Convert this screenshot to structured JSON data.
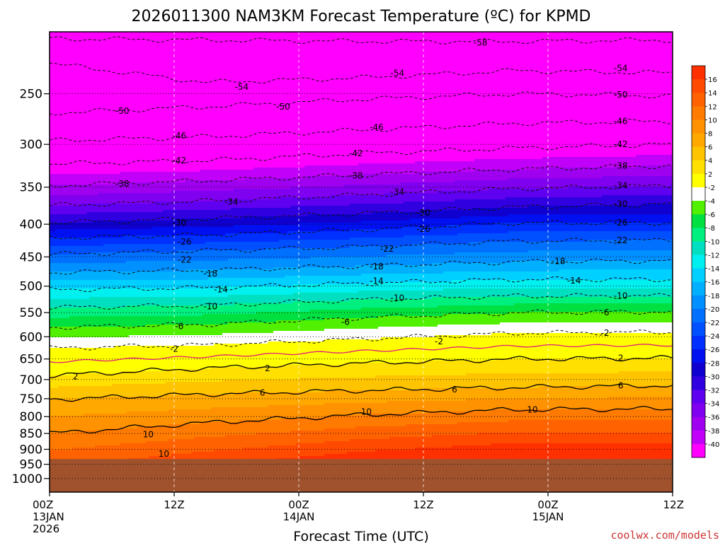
{
  "chart_data": {
    "type": "heatmap",
    "title": "2026011300 NAM3KM Forecast Temperature (ºC) for KPMD",
    "xlabel": "Forecast Time (UTC)",
    "ylabel": "",
    "credit": "coolwx.com/models",
    "x_range_hours": [
      0,
      60
    ],
    "x_ticks": [
      {
        "hour": 0,
        "lines": [
          "00Z",
          "13JAN",
          "2026"
        ]
      },
      {
        "hour": 12,
        "lines": [
          "12Z"
        ]
      },
      {
        "hour": 24,
        "lines": [
          "00Z",
          "14JAN"
        ]
      },
      {
        "hour": 36,
        "lines": [
          "12Z"
        ]
      },
      {
        "hour": 48,
        "lines": [
          "00Z",
          "15JAN"
        ]
      },
      {
        "hour": 60,
        "lines": [
          "12Z"
        ]
      }
    ],
    "y_scale": "log-pressure",
    "y_range_hPa": [
      200,
      1050
    ],
    "y_ticks": [
      250,
      300,
      350,
      400,
      450,
      500,
      550,
      600,
      650,
      700,
      750,
      800,
      850,
      900,
      950,
      1000
    ],
    "surface_pressure_hPa": 932,
    "colorbar": {
      "labels": [
        "16",
        "14",
        "12",
        "10",
        "8",
        "6",
        "4",
        "2",
        "-2",
        "-4",
        "-6",
        "-8",
        "-10",
        "-12",
        "-14",
        "-16",
        "-18",
        "-20",
        "-22",
        "-24",
        "-26",
        "-28",
        "-30",
        "-32",
        "-34",
        "-36",
        "-38",
        "-40"
      ],
      "colors": [
        "#ff3000",
        "#ff4a00",
        "#ff6200",
        "#ff7a00",
        "#ff9200",
        "#ffa800",
        "#ffc400",
        "#ffe000",
        "#ffff00",
        "#ffffff",
        "#50f000",
        "#00e040",
        "#00f080",
        "#00e0c0",
        "#00f0f0",
        "#00d0ff",
        "#00b0ff",
        "#0090ff",
        "#0070ff",
        "#0050ff",
        "#0030ff",
        "#0010f0",
        "#1000d0",
        "#3000e0",
        "#6000f0",
        "#8000f0",
        "#a000f0",
        "#c000f8",
        "#ff00ff"
      ]
    },
    "contours": [
      {
        "temp": -58,
        "label": "-58",
        "pressure_hPa": [
          205,
          206,
          207,
          207,
          206
        ]
      },
      {
        "temp": -54,
        "label": "-54",
        "pressure_hPa": [
          224,
          240,
          236,
          230,
          232
        ]
      },
      {
        "temp": -50,
        "label": "-50",
        "pressure_hPa": [
          268,
          262,
          255,
          250,
          252
        ]
      },
      {
        "temp": -46,
        "label": "-46",
        "pressure_hPa": [
          296,
          292,
          285,
          278,
          276
        ]
      },
      {
        "temp": -42,
        "label": "-42",
        "pressure_hPa": [
          322,
          318,
          310,
          304,
          300
        ]
      },
      {
        "temp": -38,
        "label": "-38",
        "pressure_hPa": [
          348,
          342,
          335,
          328,
          324
        ]
      },
      {
        "temp": -34,
        "label": "-34",
        "pressure_hPa": [
          374,
          368,
          360,
          352,
          348
        ]
      },
      {
        "temp": -30,
        "label": "-30",
        "pressure_hPa": [
          398,
          392,
          385,
          376,
          372
        ]
      },
      {
        "temp": -26,
        "label": "-26",
        "pressure_hPa": [
          420,
          416,
          408,
          398,
          398
        ]
      },
      {
        "temp": -22,
        "label": "-22",
        "pressure_hPa": [
          446,
          440,
          434,
          425,
          424
        ]
      },
      {
        "temp": -18,
        "label": "-18",
        "pressure_hPa": [
          476,
          472,
          465,
          458,
          456
        ]
      },
      {
        "temp": -14,
        "label": "-14",
        "pressure_hPa": [
          506,
          503,
          495,
          488,
          488
        ]
      },
      {
        "temp": -10,
        "label": "-10",
        "pressure_hPa": [
          540,
          536,
          525,
          518,
          518
        ]
      },
      {
        "temp": -6,
        "label": "-6",
        "pressure_hPa": [
          580,
          574,
          560,
          550,
          548
        ]
      },
      {
        "temp": -2,
        "label": "-2",
        "pressure_hPa": [
          625,
          618,
          605,
          592,
          590
        ]
      },
      {
        "temp": 2,
        "label": "2",
        "pressure_hPa": [
          690,
          672,
          660,
          650,
          648
        ]
      },
      {
        "temp": 6,
        "label": "6",
        "pressure_hPa": [
          752,
          738,
          728,
          720,
          715
        ]
      },
      {
        "temp": 10,
        "label": "10",
        "pressure_hPa": [
          850,
          818,
          795,
          780,
          778
        ]
      }
    ],
    "label_positions": [
      {
        "label": "-58",
        "hour": 41.5,
        "hPa": 208
      },
      {
        "label": "-54",
        "hour": 18.5,
        "hPa": 244
      },
      {
        "label": "-54",
        "hour": 33.5,
        "hPa": 232
      },
      {
        "label": "-54",
        "hour": 55,
        "hPa": 228
      },
      {
        "label": "-50",
        "hour": 7,
        "hPa": 266
      },
      {
        "label": "-50",
        "hour": 22.5,
        "hPa": 262
      },
      {
        "label": "-50",
        "hour": 55,
        "hPa": 251
      },
      {
        "label": "-46",
        "hour": 12.5,
        "hPa": 291
      },
      {
        "label": "-46",
        "hour": 31.5,
        "hPa": 282
      },
      {
        "label": "-46",
        "hour": 55,
        "hPa": 276
      },
      {
        "label": "-42",
        "hour": 12.5,
        "hPa": 318
      },
      {
        "label": "-42",
        "hour": 29.5,
        "hPa": 310
      },
      {
        "label": "-42",
        "hour": 55,
        "hPa": 300
      },
      {
        "label": "-38",
        "hour": 7,
        "hPa": 346
      },
      {
        "label": "-38",
        "hour": 29.5,
        "hPa": 336
      },
      {
        "label": "-38",
        "hour": 55,
        "hPa": 324
      },
      {
        "label": "-34",
        "hour": 17.5,
        "hPa": 369
      },
      {
        "label": "-34",
        "hour": 33.5,
        "hPa": 356
      },
      {
        "label": "-34",
        "hour": 55,
        "hPa": 348
      },
      {
        "label": "-30",
        "hour": 12.5,
        "hPa": 398
      },
      {
        "label": "-30",
        "hour": 36,
        "hPa": 384
      },
      {
        "label": "-30",
        "hour": 55,
        "hPa": 372
      },
      {
        "label": "-26",
        "hour": 13,
        "hPa": 426
      },
      {
        "label": "-26",
        "hour": 36,
        "hPa": 407
      },
      {
        "label": "-26",
        "hour": 55,
        "hPa": 398
      },
      {
        "label": "-22",
        "hour": 13,
        "hPa": 455
      },
      {
        "label": "-22",
        "hour": 32.5,
        "hPa": 437
      },
      {
        "label": "-22",
        "hour": 55,
        "hPa": 424
      },
      {
        "label": "-18",
        "hour": 15.5,
        "hPa": 478
      },
      {
        "label": "-18",
        "hour": 31.5,
        "hPa": 466
      },
      {
        "label": "-18",
        "hour": 49,
        "hPa": 457
      },
      {
        "label": "-14",
        "hour": 16.5,
        "hPa": 506
      },
      {
        "label": "-14",
        "hour": 31.5,
        "hPa": 491
      },
      {
        "label": "-14",
        "hour": 50.5,
        "hPa": 490
      },
      {
        "label": "-10",
        "hour": 15.5,
        "hPa": 538
      },
      {
        "label": "-10",
        "hour": 33.5,
        "hPa": 522
      },
      {
        "label": "-10",
        "hour": 55,
        "hPa": 518
      },
      {
        "label": "-6",
        "hour": 12.5,
        "hPa": 578
      },
      {
        "label": "-6",
        "hour": 28.5,
        "hPa": 569
      },
      {
        "label": "-6",
        "hour": 53.5,
        "hPa": 550
      },
      {
        "label": "-2",
        "hour": 12,
        "hPa": 627
      },
      {
        "label": "-2",
        "hour": 37.5,
        "hPa": 610
      },
      {
        "label": "-2",
        "hour": 53.5,
        "hPa": 592
      },
      {
        "label": "2",
        "hour": 2.5,
        "hPa": 692
      },
      {
        "label": "2",
        "hour": 21,
        "hPa": 672
      },
      {
        "label": "2",
        "hour": 55,
        "hPa": 648
      },
      {
        "label": "6",
        "hour": 20.5,
        "hPa": 734
      },
      {
        "label": "6",
        "hour": 39,
        "hPa": 726
      },
      {
        "label": "6",
        "hour": 55,
        "hPa": 716
      },
      {
        "label": "10",
        "hour": 9.5,
        "hPa": 853
      },
      {
        "label": "10",
        "hour": 11,
        "hPa": 915
      },
      {
        "label": "10",
        "hour": 30.5,
        "hPa": 786
      },
      {
        "label": "10",
        "hour": 46.5,
        "hPa": 780
      }
    ],
    "grid": true,
    "legend_position": "right colorbar"
  }
}
